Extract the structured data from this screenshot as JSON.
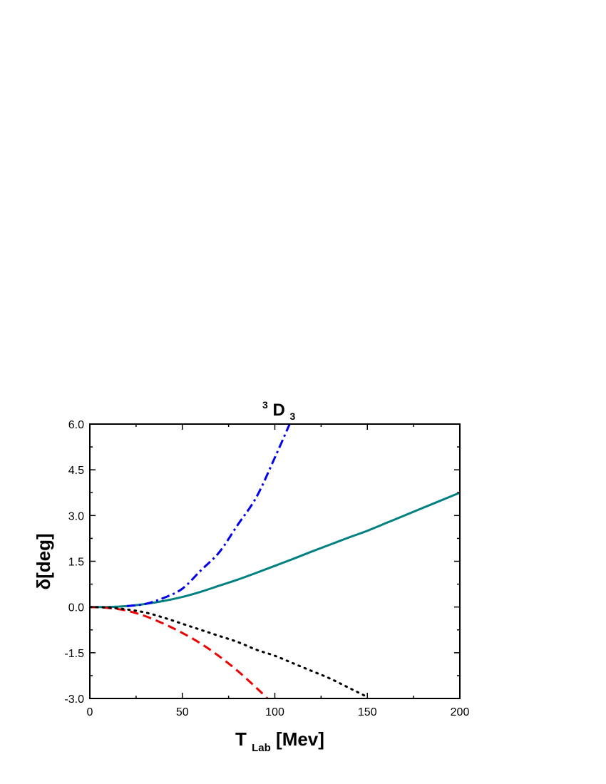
{
  "chart_data": {
    "type": "line",
    "title": "D",
    "title_super": "3",
    "title_sub": "3",
    "xlabel": "T",
    "xlabel_sub": "Lab",
    "xlabel_unit": "[Mev]",
    "ylabel": "δ[deg]",
    "xlim": [
      0,
      200
    ],
    "ylim": [
      -3.0,
      6.0
    ],
    "xticks": [
      0,
      50,
      100,
      150,
      200
    ],
    "xtick_labels": [
      "0",
      "50",
      "100",
      "150",
      "200"
    ],
    "yticks": [
      -3.0,
      -1.5,
      0.0,
      1.5,
      3.0,
      4.5,
      6.0
    ],
    "ytick_labels": [
      "-3.0",
      "-1.5",
      "0.0",
      "1.5",
      "3.0",
      "4.5",
      "6.0"
    ],
    "grid": false,
    "legend": "none",
    "series": [
      {
        "color": "#008080",
        "style": "solid",
        "x": [
          0,
          10,
          20,
          30,
          40,
          50,
          60,
          70,
          80,
          90,
          100,
          110,
          120,
          130,
          140,
          150,
          160,
          170,
          180,
          190,
          200
        ],
        "y": [
          0.0,
          0.0,
          0.03,
          0.1,
          0.2,
          0.33,
          0.5,
          0.7,
          0.9,
          1.12,
          1.35,
          1.58,
          1.82,
          2.05,
          2.28,
          2.5,
          2.75,
          3.0,
          3.25,
          3.5,
          3.75
        ]
      },
      {
        "color": "#0000ee",
        "style": "dashdot",
        "x": [
          20,
          30,
          40,
          50,
          60,
          70,
          80,
          90,
          100,
          108
        ],
        "y": [
          0.03,
          0.1,
          0.3,
          0.6,
          1.2,
          1.8,
          2.7,
          3.6,
          4.9,
          6.0
        ]
      },
      {
        "color": "#ee0000",
        "style": "dashed",
        "x": [
          0,
          10,
          20,
          30,
          40,
          50,
          60,
          70,
          80,
          90,
          96
        ],
        "y": [
          0.0,
          -0.03,
          -0.12,
          -0.3,
          -0.55,
          -0.85,
          -1.2,
          -1.62,
          -2.1,
          -2.65,
          -3.0
        ]
      },
      {
        "color": "#000000",
        "style": "dotted",
        "x": [
          0,
          10,
          20,
          30,
          40,
          50,
          60,
          70,
          80,
          90,
          100,
          110,
          120,
          130,
          140,
          150
        ],
        "y": [
          0.0,
          -0.02,
          -0.08,
          -0.18,
          -0.35,
          -0.55,
          -0.75,
          -0.95,
          -1.15,
          -1.4,
          -1.6,
          -1.85,
          -2.1,
          -2.35,
          -2.65,
          -2.95
        ]
      }
    ]
  }
}
